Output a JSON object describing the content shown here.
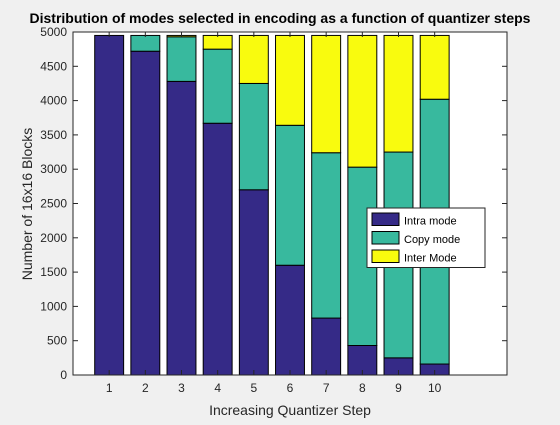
{
  "chart_data": {
    "type": "bar",
    "stacked": true,
    "title": "Distribution of modes selected in encoding as a function of quantizer steps",
    "xlabel": "Increasing Quantizer Step",
    "ylabel": "Number of 16x16 Blocks",
    "categories": [
      "1",
      "2",
      "3",
      "4",
      "5",
      "6",
      "7",
      "8",
      "9",
      "10"
    ],
    "x": [
      1,
      2,
      3,
      4,
      5,
      6,
      7,
      8,
      9,
      10
    ],
    "xlim": [
      0,
      12
    ],
    "ylim": [
      0,
      5000
    ],
    "yticks": [
      0,
      500,
      1000,
      1500,
      2000,
      2500,
      3000,
      3500,
      4000,
      4500,
      5000
    ],
    "series": [
      {
        "name": "Intra mode",
        "color": "#352a87",
        "values": [
          4950,
          4720,
          4280,
          3670,
          2700,
          1600,
          830,
          430,
          250,
          160
        ]
      },
      {
        "name": "Copy mode",
        "color": "#38b99e",
        "values": [
          0,
          230,
          650,
          1080,
          1550,
          2040,
          2410,
          2600,
          3000,
          3860
        ]
      },
      {
        "name": "Inter Mode",
        "color": "#f9fb0e",
        "values": [
          0,
          0,
          20,
          200,
          700,
          1310,
          1710,
          1920,
          1700,
          930
        ]
      }
    ],
    "grid": false,
    "legend_position": "right-middle"
  }
}
